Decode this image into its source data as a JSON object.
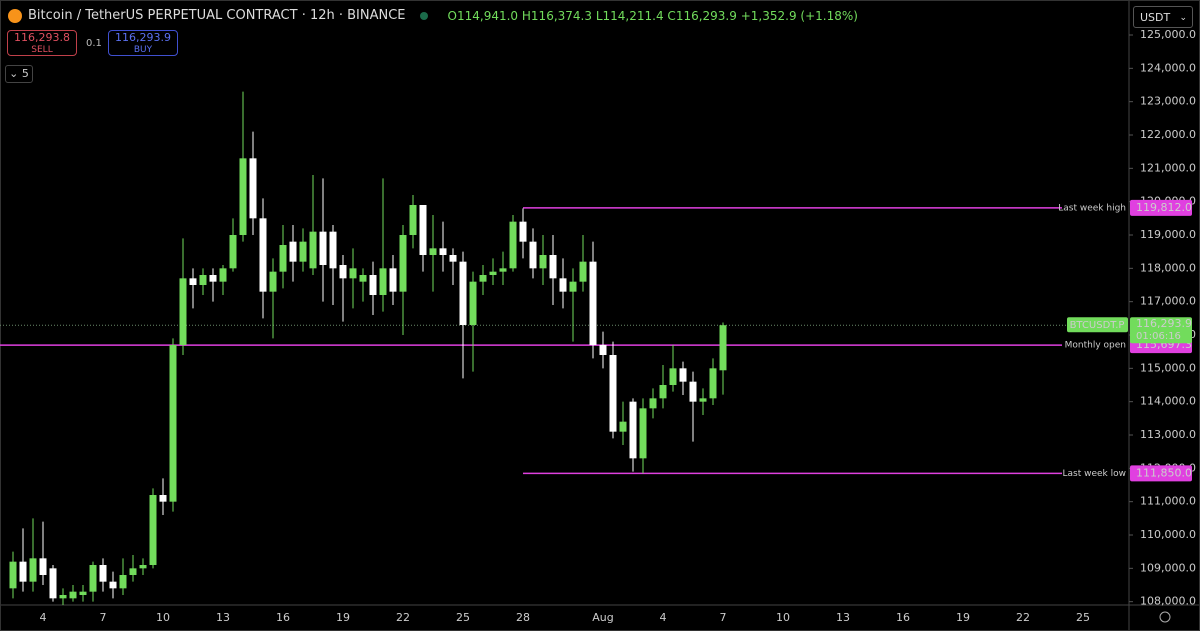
{
  "header": {
    "title": "Bitcoin / TetherUS PERPETUAL CONTRACT · 12h · BINANCE",
    "ohlc": [
      {
        "key": "O",
        "value": "114,941.0"
      },
      {
        "key": "H",
        "value": "116,374.3"
      },
      {
        "key": "L",
        "value": "114,211.4"
      },
      {
        "key": "C",
        "value": "116,293.9"
      }
    ],
    "change": "+1,352.9 (+1.18%)",
    "sell": {
      "price": "116,293.8",
      "label": "SELL"
    },
    "spread": "0.1",
    "buy": {
      "price": "116,293.9",
      "label": "BUY"
    },
    "indicators": "5",
    "currency": "USDT"
  },
  "chart_data": {
    "type": "candlestick",
    "categories": [
      null,
      null,
      null,
      "4",
      null,
      null,
      null,
      null,
      null,
      "7",
      null,
      null,
      null,
      null,
      null,
      "10",
      null,
      null,
      null,
      null,
      null,
      "13",
      null,
      null,
      null,
      null,
      null,
      "16",
      null,
      null,
      null,
      null,
      null,
      "19",
      null,
      null,
      null,
      null,
      null,
      "22",
      null,
      null,
      null,
      null,
      null,
      "25",
      null,
      null,
      null,
      null,
      null,
      "28",
      null,
      null,
      null,
      null,
      null,
      null,
      null,
      "Aug",
      null,
      null,
      null,
      null,
      null,
      "4",
      null,
      null,
      null,
      null,
      null,
      "7",
      null,
      null,
      null,
      null,
      null,
      "10",
      null,
      null,
      null,
      null,
      null,
      "13",
      null,
      null,
      null,
      null,
      null,
      "16",
      null,
      null,
      null,
      null,
      null,
      "19",
      null,
      null,
      null,
      null,
      null,
      "22",
      null,
      null,
      null,
      null,
      null,
      "25"
    ],
    "open": [
      108400,
      109200,
      108600,
      109300,
      109000,
      108100,
      108100,
      108200,
      108300,
      109100,
      108600,
      108400,
      108800,
      109000,
      109100,
      111200,
      111000,
      115700,
      117700,
      117500,
      117800,
      117600,
      118000,
      119000,
      121300,
      119500,
      117300,
      117900,
      118800,
      118200,
      118000,
      119100,
      119100,
      118100,
      117700,
      117600,
      117800,
      117200,
      118000,
      117300,
      119000,
      119900,
      118400,
      118600,
      118400,
      118200,
      116300,
      117600,
      117800,
      117900,
      118000,
      119400,
      118800,
      118000,
      118400,
      117700,
      117300,
      117600,
      118200,
      115700,
      115400,
      113100,
      114000,
      112300,
      113800,
      114100,
      114500,
      115000,
      114600,
      114000,
      114100,
      114941,
      null,
      null,
      null,
      null,
      null,
      null,
      null,
      null,
      null,
      null,
      null,
      null,
      null,
      null,
      null,
      null,
      null,
      null,
      null,
      null,
      null,
      null,
      null,
      null,
      null,
      null,
      null,
      null,
      null,
      null,
      null,
      null,
      null,
      null,
      null,
      null
    ],
    "high": [
      109500,
      110200,
      110500,
      110400,
      109100,
      108400,
      108500,
      108500,
      109200,
      109300,
      108900,
      109300,
      109400,
      109300,
      111400,
      111700,
      115900,
      118900,
      118000,
      118000,
      118000,
      118100,
      119500,
      123300,
      122100,
      120100,
      118300,
      119300,
      119300,
      119200,
      120800,
      120700,
      119300,
      118400,
      118600,
      118000,
      118200,
      120700,
      118400,
      119300,
      120200,
      119900,
      119600,
      119400,
      118600,
      118500,
      117900,
      118100,
      118300,
      118500,
      119600,
      119800,
      119200,
      119000,
      119000,
      118300,
      118000,
      119000,
      118800,
      116100,
      115800,
      114000,
      114100,
      114100,
      114400,
      115100,
      115700,
      115200,
      114900,
      114400,
      115300,
      116374.3,
      null,
      null,
      null,
      null,
      null,
      null,
      null,
      null,
      null,
      null,
      null,
      null,
      null,
      null,
      null,
      null,
      null,
      null,
      null,
      null,
      null,
      null,
      null,
      null,
      null,
      null,
      null,
      null,
      null,
      null,
      null,
      null,
      null,
      null,
      null,
      null
    ],
    "low": [
      108100,
      108300,
      108300,
      108500,
      108000,
      107900,
      108000,
      108000,
      108000,
      108300,
      108100,
      108200,
      108600,
      108800,
      109000,
      110600,
      110700,
      115400,
      116800,
      117200,
      117000,
      117200,
      117900,
      118800,
      119000,
      116500,
      115900,
      117400,
      117600,
      117900,
      117800,
      117000,
      116900,
      116400,
      116800,
      117000,
      116600,
      116700,
      116900,
      116000,
      118600,
      117900,
      117300,
      117900,
      117500,
      114700,
      114900,
      117200,
      117500,
      117500,
      117900,
      118300,
      117700,
      117500,
      116900,
      116800,
      115800,
      117300,
      115300,
      115000,
      112900,
      112700,
      111900,
      111850,
      113500,
      113800,
      114300,
      114200,
      112800,
      113600,
      113900,
      114211.4,
      null,
      null,
      null,
      null,
      null,
      null,
      null,
      null,
      null,
      null,
      null,
      null,
      null,
      null,
      null,
      null,
      null,
      null,
      null,
      null,
      null,
      null,
      null,
      null,
      null,
      null,
      null,
      null,
      null,
      null,
      null,
      null,
      null,
      null,
      null,
      null
    ],
    "close": [
      109200,
      108600,
      109300,
      108800,
      108100,
      108200,
      108300,
      108300,
      109100,
      108600,
      108400,
      108800,
      109000,
      109100,
      111200,
      111000,
      115700,
      117700,
      117500,
      117800,
      117600,
      118000,
      119000,
      121300,
      119500,
      117300,
      117900,
      118700,
      118200,
      118800,
      119100,
      118100,
      118000,
      117700,
      118000,
      117800,
      117200,
      118000,
      117300,
      119000,
      119900,
      118400,
      118600,
      118400,
      118200,
      116300,
      117600,
      117800,
      117900,
      118000,
      119400,
      118800,
      118000,
      118400,
      117700,
      117300,
      117600,
      118200,
      115700,
      115400,
      113100,
      113400,
      112300,
      113800,
      114100,
      114500,
      115000,
      114600,
      114000,
      114100,
      115000,
      116293.9,
      null,
      null,
      null,
      null,
      null,
      null,
      null,
      null,
      null,
      null,
      null,
      null,
      null,
      null,
      null,
      null,
      null,
      null,
      null,
      null,
      null,
      null,
      null,
      null,
      null,
      null,
      null,
      null,
      null,
      null,
      null,
      null,
      null,
      null,
      null,
      null
    ],
    "up_color": "#72dc5c",
    "down_color": "#ffffff",
    "ylim": [
      107900,
      126050
    ],
    "yticks": [
      {
        "value": 108000,
        "label": "108,000.0"
      },
      {
        "value": 109000,
        "label": "109,000.0"
      },
      {
        "value": 110000,
        "label": "110,000.0"
      },
      {
        "value": 111000,
        "label": "111,000.0"
      },
      {
        "value": 112000,
        "label": "112,000.0"
      },
      {
        "value": 113000,
        "label": "113,000.0"
      },
      {
        "value": 114000,
        "label": "114,000.0"
      },
      {
        "value": 115000,
        "label": "115,000.0"
      },
      {
        "value": 116000,
        "label": "116,000.0"
      },
      {
        "value": 117000,
        "label": "117,000.0"
      },
      {
        "value": 118000,
        "label": "118,000.0"
      },
      {
        "value": 119000,
        "label": "119,000.0"
      },
      {
        "value": 120000,
        "label": "120,000.0"
      },
      {
        "value": 121000,
        "label": "121,000.0"
      },
      {
        "value": 122000,
        "label": "122,000.0"
      },
      {
        "value": 123000,
        "label": "123,000.0"
      },
      {
        "value": 124000,
        "label": "124,000.0"
      },
      {
        "value": 125000,
        "label": "125,000.0"
      }
    ],
    "levels": [
      {
        "name": "Last week high",
        "value": 119812.0,
        "value_label": "119,812.0",
        "color": "#e040e0"
      },
      {
        "name": "Monthly open",
        "value": 115697.3,
        "value_label": "115,697.3",
        "color": "#e040e0"
      },
      {
        "name": "Last week low",
        "value": 111850.0,
        "value_label": "111,850.0",
        "color": "#e040e0"
      }
    ],
    "last_price": {
      "symbol": "BTCUSDT.P",
      "value": 116293.9,
      "value_label": "116,293.9",
      "countdown": "01:06:16",
      "color": "#72dc5c"
    }
  }
}
